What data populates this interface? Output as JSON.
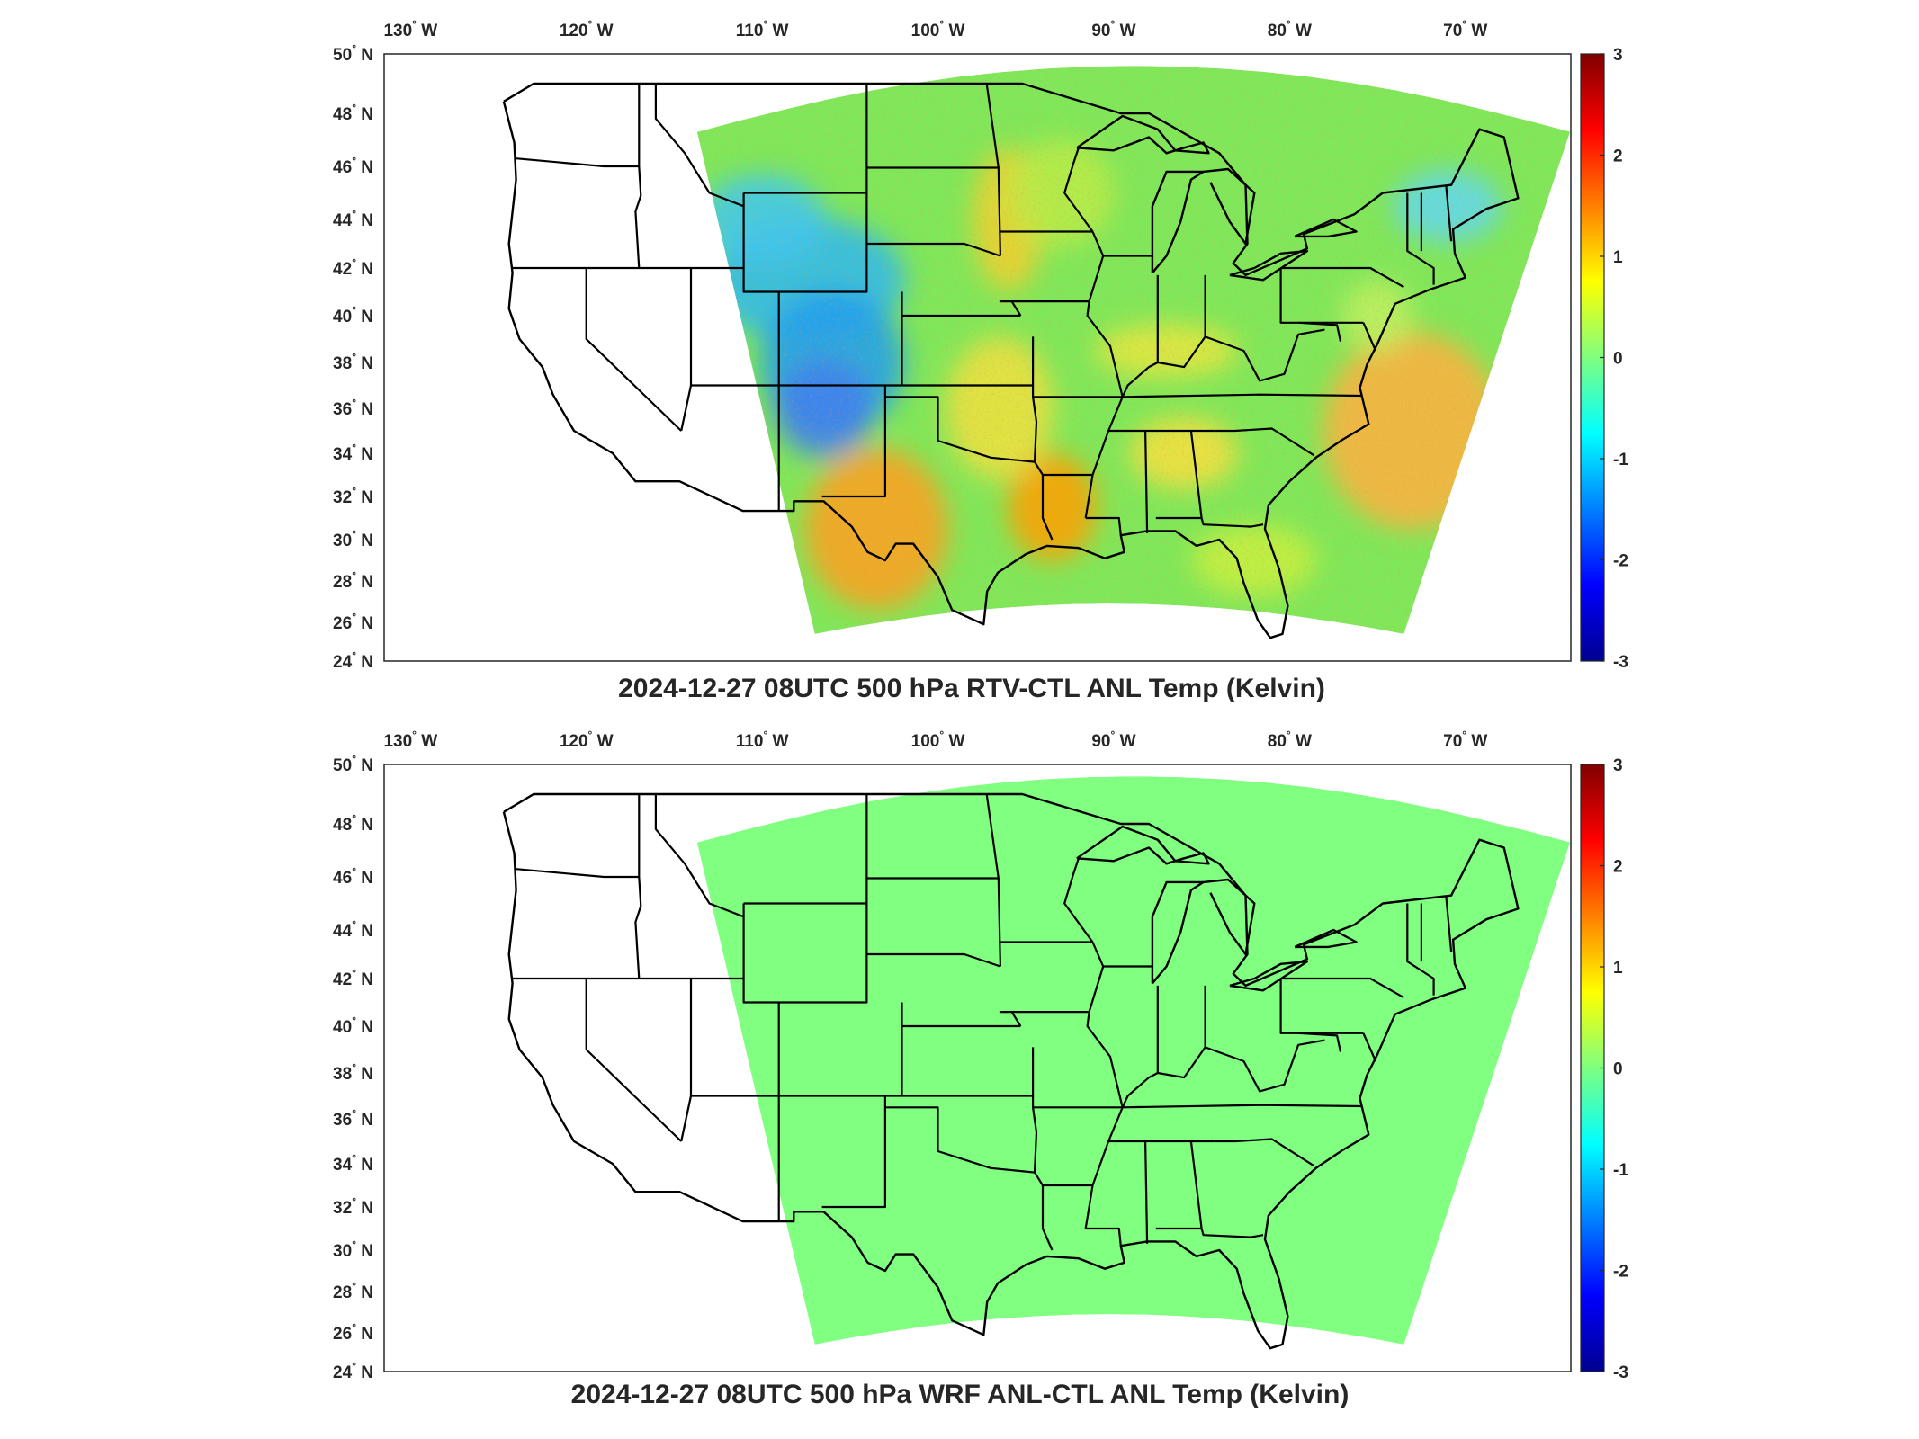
{
  "figure": {
    "panels": [
      {
        "title": "2024-12-27 08UTC 500 hPa RTV-CTL ANL Temp (Kelvin)",
        "field": "anomaly"
      },
      {
        "title": "2024-12-27 08UTC 500 hPa WRF ANL-CTL ANL Temp (Kelvin)",
        "field": "uniform_zero"
      }
    ],
    "lon_ticks": [
      "130",
      "120",
      "110",
      "100",
      "90",
      "80",
      "70"
    ],
    "lon_suffix": "W",
    "lat_ticks": [
      "50",
      "48",
      "46",
      "44",
      "42",
      "40",
      "38",
      "36",
      "34",
      "32",
      "30",
      "28",
      "26",
      "24"
    ],
    "lat_suffix": "N",
    "degree_symbol": "°",
    "colorbar": {
      "ticks": [
        "3",
        "2",
        "1",
        "0",
        "-1",
        "-2",
        "-3"
      ],
      "colormap": "jet",
      "range": [
        -3,
        3
      ]
    }
  },
  "chart_data": [
    {
      "type": "heatmap",
      "title": "2024-12-27 08UTC 500 hPa RTV-CTL ANL Temp (Kelvin)",
      "xlabel": "",
      "ylabel": "",
      "x_range_degW": [
        131.5,
        64
      ],
      "y_range_degN": [
        24,
        50
      ],
      "value_range": [
        -3,
        3
      ],
      "description_regions": [
        {
          "region": "Wyoming/Colorado/New Mexico",
          "value": -1.0
        },
        {
          "region": "Texas west",
          "value": 1.3
        },
        {
          "region": "Great Plains east / Missouri valley",
          "value": 0.9
        },
        {
          "region": "Louisiana",
          "value": 1.2
        },
        {
          "region": "Atlantic off Carolinas",
          "value": 1.4
        },
        {
          "region": "Northeast",
          "value": -0.6
        },
        {
          "region": "background",
          "value": 0.1
        }
      ]
    },
    {
      "type": "heatmap",
      "title": "2024-12-27 08UTC 500 hPa WRF ANL-CTL ANL Temp (Kelvin)",
      "xlabel": "",
      "ylabel": "",
      "x_range_degW": [
        131.5,
        64
      ],
      "y_range_degN": [
        24,
        50
      ],
      "value_range": [
        -3,
        3
      ],
      "description_regions": [
        {
          "region": "entire domain",
          "value": 0.0
        }
      ]
    }
  ]
}
